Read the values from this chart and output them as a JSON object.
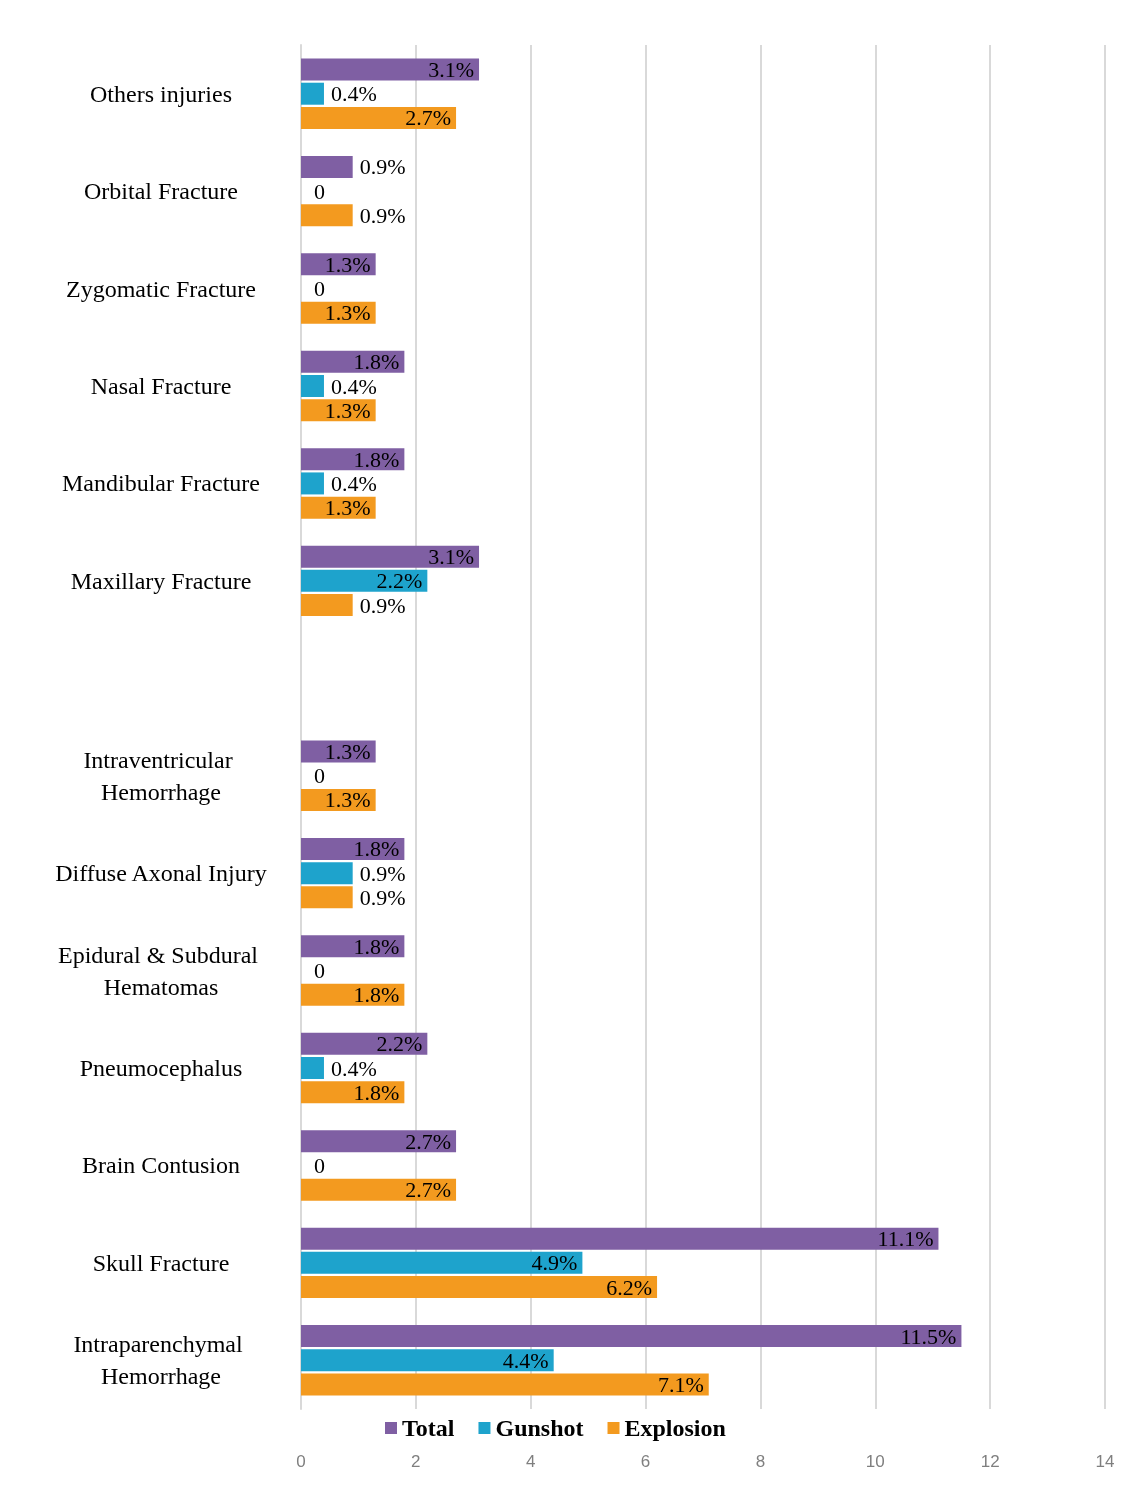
{
  "chart_data": {
    "type": "bar",
    "orientation": "horizontal",
    "categories": [
      "Others injuries",
      "Orbital Fracture",
      "Zygomatic Fracture",
      "Nasal Fracture",
      "Mandibular Fracture",
      "Maxillary Fracture",
      null,
      "Intraventricular Hemorrhage",
      "Diffuse Axonal Injury",
      "Epidural & Subdural Hematomas",
      "Pneumocephalus",
      "Brain Contusion",
      "Skull Fracture",
      "Intraparenchymal Hemorrhage"
    ],
    "series": [
      {
        "name": "Total",
        "color": "#7f5fa3",
        "values": [
          3.1,
          0.9,
          1.3,
          1.8,
          1.8,
          3.1,
          null,
          1.3,
          1.8,
          1.8,
          2.2,
          2.7,
          11.1,
          11.5
        ],
        "value_labels": [
          "3.1%",
          "0.9%",
          "1.3%",
          "1.8%",
          "1.8%",
          "3.1%",
          null,
          "1.3%",
          "1.8%",
          "1.8%",
          "2.2%",
          "2.7%",
          "11.1%",
          "11.5%"
        ]
      },
      {
        "name": "Gunshot",
        "color": "#1ea3cc",
        "values": [
          0.4,
          0,
          0,
          0.4,
          0.4,
          2.2,
          null,
          0,
          0.9,
          0,
          0.4,
          0,
          4.9,
          4.4
        ],
        "value_labels": [
          "0.4%",
          "0",
          "0",
          "0.4%",
          "0.4%",
          "2.2%",
          null,
          "0",
          "0.9%",
          "0",
          "0.4%",
          "0",
          "4.9%",
          "4.4%"
        ]
      },
      {
        "name": "Explosion",
        "color": "#f39a1f",
        "values": [
          2.7,
          0.9,
          1.3,
          1.3,
          1.3,
          0.9,
          null,
          1.3,
          0.9,
          1.8,
          1.8,
          2.7,
          6.2,
          7.1
        ],
        "value_labels": [
          "2.7%",
          "0.9%",
          "1.3%",
          "1.3%",
          "1.3%",
          "0.9%",
          null,
          "1.3%",
          "0.9%",
          "1.8%",
          "1.8%",
          "2.7%",
          "6.2%",
          "7.1%"
        ]
      }
    ],
    "xlim": [
      0,
      14
    ],
    "xticks": [
      0,
      2,
      4,
      6,
      8,
      10,
      12,
      14
    ],
    "grid": "x",
    "legend": "bottom"
  }
}
